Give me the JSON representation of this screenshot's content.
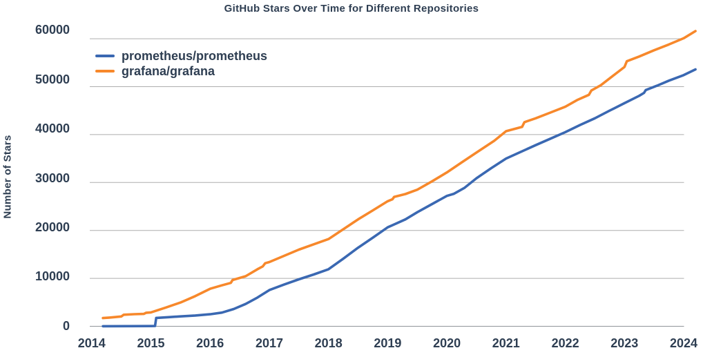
{
  "title": "GitHub Stars Over Time for Different Repositories",
  "chart_data": {
    "type": "line",
    "title": "GitHub Stars Over Time for Different Repositories",
    "xlabel": "",
    "ylabel": "Number of Stars",
    "x_ticks": [
      2014,
      2015,
      2016,
      2017,
      2018,
      2019,
      2020,
      2021,
      2022,
      2023,
      2024
    ],
    "y_ticks": [
      0,
      10000,
      20000,
      30000,
      40000,
      50000,
      60000
    ],
    "xlim": [
      2014,
      2024.2
    ],
    "ylim": [
      0,
      60000
    ],
    "grid": "horizontal",
    "grid_color": "#adadad",
    "axis_line_color": "#8f9399",
    "text_color": "#2e3e52",
    "background_color": "#ffffff",
    "legend_position": "top-left-inside",
    "series": [
      {
        "name": "prometheus/prometheus",
        "color": "#3a68b2",
        "points": [
          [
            2014.19,
            20
          ],
          [
            2014.6,
            30
          ],
          [
            2015.0,
            50
          ],
          [
            2015.07,
            60
          ],
          [
            2015.09,
            1750
          ],
          [
            2015.3,
            1900
          ],
          [
            2015.5,
            2060
          ],
          [
            2015.75,
            2250
          ],
          [
            2016.0,
            2500
          ],
          [
            2016.2,
            2850
          ],
          [
            2016.4,
            3600
          ],
          [
            2016.6,
            4650
          ],
          [
            2016.8,
            6000
          ],
          [
            2017.0,
            7550
          ],
          [
            2017.25,
            8700
          ],
          [
            2017.5,
            9800
          ],
          [
            2017.75,
            10800
          ],
          [
            2018.0,
            11900
          ],
          [
            2018.25,
            14100
          ],
          [
            2018.5,
            16400
          ],
          [
            2018.75,
            18500
          ],
          [
            2019.0,
            20650
          ],
          [
            2019.1,
            21200
          ],
          [
            2019.3,
            22300
          ],
          [
            2019.5,
            23800
          ],
          [
            2019.75,
            25500
          ],
          [
            2020.0,
            27200
          ],
          [
            2020.12,
            27650
          ],
          [
            2020.3,
            28900
          ],
          [
            2020.5,
            30900
          ],
          [
            2020.75,
            33000
          ],
          [
            2021.0,
            35000
          ],
          [
            2021.25,
            36400
          ],
          [
            2021.5,
            37800
          ],
          [
            2021.75,
            39150
          ],
          [
            2022.0,
            40500
          ],
          [
            2022.25,
            42000
          ],
          [
            2022.5,
            43400
          ],
          [
            2022.75,
            45000
          ],
          [
            2023.0,
            46550
          ],
          [
            2023.25,
            48100
          ],
          [
            2023.33,
            48700
          ],
          [
            2023.36,
            49300
          ],
          [
            2023.55,
            50200
          ],
          [
            2023.75,
            51250
          ],
          [
            2024.0,
            52400
          ],
          [
            2024.2,
            53600
          ]
        ]
      },
      {
        "name": "grafana/grafana",
        "color": "#f7882b",
        "points": [
          [
            2014.19,
            1720
          ],
          [
            2014.3,
            1820
          ],
          [
            2014.5,
            2050
          ],
          [
            2014.54,
            2400
          ],
          [
            2014.72,
            2520
          ],
          [
            2014.88,
            2580
          ],
          [
            2014.92,
            2820
          ],
          [
            2015.0,
            2900
          ],
          [
            2015.25,
            3900
          ],
          [
            2015.5,
            4950
          ],
          [
            2015.75,
            6300
          ],
          [
            2016.0,
            7830
          ],
          [
            2016.2,
            8550
          ],
          [
            2016.35,
            9050
          ],
          [
            2016.38,
            9650
          ],
          [
            2016.6,
            10450
          ],
          [
            2016.8,
            11900
          ],
          [
            2016.89,
            12500
          ],
          [
            2016.93,
            13150
          ],
          [
            2017.0,
            13400
          ],
          [
            2017.25,
            14700
          ],
          [
            2017.5,
            16000
          ],
          [
            2017.75,
            17100
          ],
          [
            2018.0,
            18200
          ],
          [
            2018.25,
            20250
          ],
          [
            2018.5,
            22300
          ],
          [
            2018.75,
            24200
          ],
          [
            2019.0,
            26100
          ],
          [
            2019.08,
            26500
          ],
          [
            2019.11,
            27000
          ],
          [
            2019.3,
            27600
          ],
          [
            2019.5,
            28500
          ],
          [
            2019.75,
            30250
          ],
          [
            2020.0,
            32100
          ],
          [
            2020.25,
            34200
          ],
          [
            2020.5,
            36250
          ],
          [
            2020.8,
            38700
          ],
          [
            2021.0,
            40700
          ],
          [
            2021.27,
            41600
          ],
          [
            2021.31,
            42600
          ],
          [
            2021.5,
            43400
          ],
          [
            2021.75,
            44600
          ],
          [
            2022.0,
            45800
          ],
          [
            2022.2,
            47200
          ],
          [
            2022.4,
            48300
          ],
          [
            2022.44,
            49200
          ],
          [
            2022.6,
            50300
          ],
          [
            2022.8,
            52200
          ],
          [
            2023.0,
            54100
          ],
          [
            2023.04,
            55300
          ],
          [
            2023.25,
            56300
          ],
          [
            2023.5,
            57600
          ],
          [
            2023.75,
            58800
          ],
          [
            2024.0,
            60100
          ],
          [
            2024.2,
            61600
          ]
        ]
      }
    ]
  }
}
